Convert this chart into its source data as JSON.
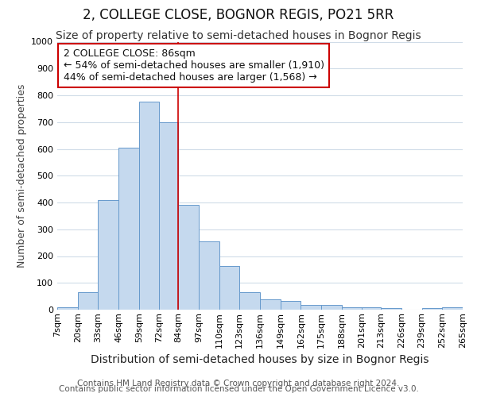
{
  "title": "2, COLLEGE CLOSE, BOGNOR REGIS, PO21 5RR",
  "subtitle": "Size of property relative to semi-detached houses in Bognor Regis",
  "xlabel": "Distribution of semi-detached houses by size in Bognor Regis",
  "ylabel": "Number of semi-detached properties",
  "footer_line1": "Contains HM Land Registry data © Crown copyright and database right 2024.",
  "footer_line2": "Contains public sector information licensed under the Open Government Licence v3.0.",
  "annotation_title": "2 COLLEGE CLOSE: 86sqm",
  "annotation_line1": "← 54% of semi-detached houses are smaller (1,910)",
  "annotation_line2": "44% of semi-detached houses are larger (1,568) →",
  "bin_edges": [
    7,
    20,
    33,
    46,
    59,
    72,
    84,
    97,
    110,
    123,
    136,
    149,
    162,
    175,
    188,
    201,
    213,
    226,
    239,
    252,
    265
  ],
  "bin_labels": [
    "7sqm",
    "20sqm",
    "33sqm",
    "46sqm",
    "59sqm",
    "72sqm",
    "84sqm",
    "97sqm",
    "110sqm",
    "123sqm",
    "136sqm",
    "149sqm",
    "162sqm",
    "175sqm",
    "188sqm",
    "201sqm",
    "213sqm",
    "226sqm",
    "239sqm",
    "252sqm",
    "265sqm"
  ],
  "bar_values": [
    8,
    65,
    410,
    605,
    775,
    700,
    390,
    255,
    162,
    65,
    40,
    32,
    17,
    17,
    8,
    10,
    5,
    0,
    5,
    8
  ],
  "bar_color": "#c5d9ee",
  "bar_edge_color": "#6699cc",
  "vline_x": 84,
  "vline_color": "#cc0000",
  "ylim": [
    0,
    1000
  ],
  "yticks": [
    0,
    100,
    200,
    300,
    400,
    500,
    600,
    700,
    800,
    900,
    1000
  ],
  "fig_bg": "#ffffff",
  "plot_bg": "#ffffff",
  "grid_color": "#d0dce8",
  "annotation_bg": "#ffffff",
  "annotation_edge": "#cc0000",
  "title_fontsize": 12,
  "subtitle_fontsize": 10,
  "ylabel_fontsize": 9,
  "xlabel_fontsize": 10,
  "tick_fontsize": 8,
  "footer_fontsize": 7.5,
  "annot_fontsize": 9
}
